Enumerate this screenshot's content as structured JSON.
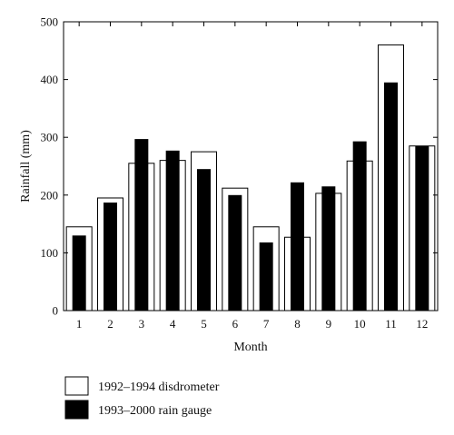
{
  "chart_data": {
    "type": "bar",
    "xlabel": "Month",
    "ylabel": "Rainfall (mm)",
    "ylim": [
      0,
      500
    ],
    "yticks": [
      0,
      100,
      200,
      300,
      400,
      500
    ],
    "categories": [
      "1",
      "2",
      "3",
      "4",
      "5",
      "6",
      "7",
      "8",
      "9",
      "10",
      "11",
      "12"
    ],
    "series": [
      {
        "name": "1992–1994 disdrometer",
        "color": "#ffffff",
        "values": [
          145,
          195,
          255,
          260,
          275,
          212,
          145,
          127,
          203,
          259,
          460,
          285
        ]
      },
      {
        "name": "1993–2000 rain gauge",
        "color": "#000000",
        "values": [
          130,
          187,
          297,
          277,
          245,
          200,
          118,
          222,
          215,
          293,
          395,
          285
        ]
      }
    ],
    "grid": false,
    "legend_position": "bottom-left"
  }
}
